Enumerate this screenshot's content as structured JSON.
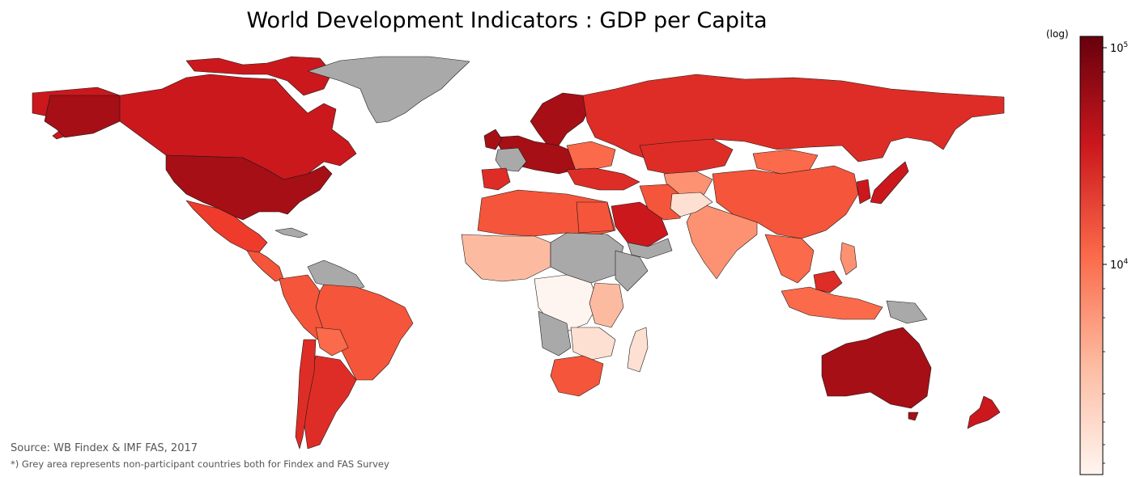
{
  "title": "World Development Indicators : GDP per Capita",
  "source": "Source: WB Findex & IMF FAS, 2017",
  "note": "*) Grey area represents non-participant countries both for Findex and FAS Survey",
  "colorbar": {
    "label": "(log)",
    "scale": "log",
    "tick_base": "10",
    "ticks": [
      {
        "exp": "5",
        "value": 100000
      },
      {
        "exp": "4",
        "value": 10000
      }
    ],
    "colors": [
      "#fff5f0",
      "#fcbba1",
      "#fb6a4a",
      "#cb181d",
      "#67000d"
    ],
    "nodata_color": "#a9a9a9"
  },
  "map_colors": {
    "very_high": "#a50f15",
    "high": "#cb181d",
    "upper_mid": "#de2d26",
    "mid": "#ef3b2c",
    "lower_mid": "#f5553a",
    "low_mid": "#fb6a4a",
    "low": "#fc9272",
    "lower": "#fcbba1",
    "lowest": "#fee0d2",
    "minimal": "#fff5f0",
    "nodata": "#a9a9a9"
  }
}
